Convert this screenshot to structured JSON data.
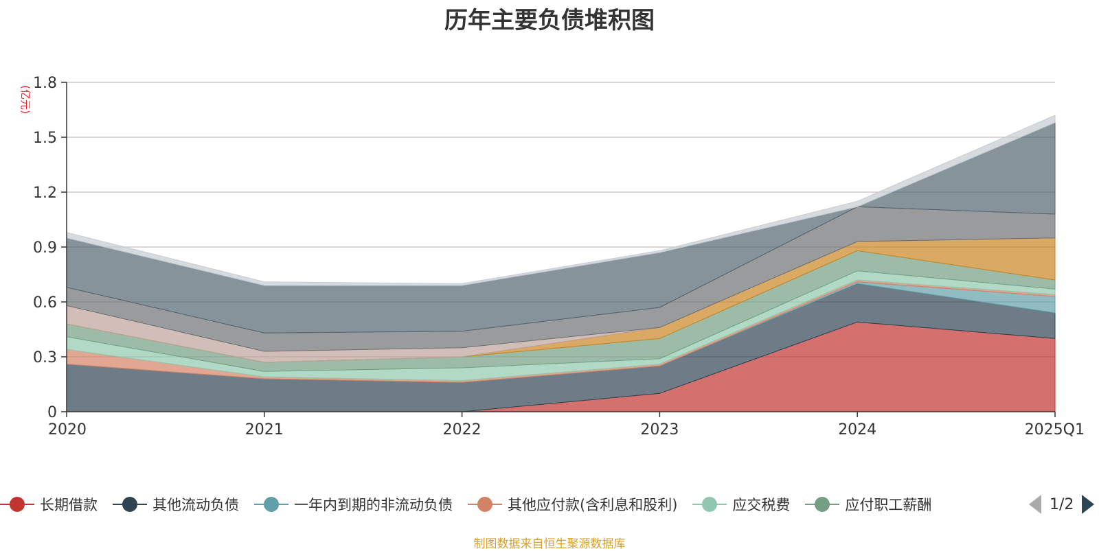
{
  "title": "历年主要负债堆积图",
  "unit_label": "(亿元)",
  "source_note": "制图数据来自恒生聚源数据库",
  "pager": {
    "text": "1/2"
  },
  "legend_items": [
    {
      "label": "长期借款",
      "color": "#c23531"
    },
    {
      "label": "其他流动负债",
      "color": "#2f4554"
    },
    {
      "label": "一年内到期的非流动负债",
      "color": "#61a0a8"
    },
    {
      "label": "其他应付款(含利息和股利)",
      "color": "#d48265"
    },
    {
      "label": "应交税费",
      "color": "#91c7ae"
    },
    {
      "label": "应付职工薪酬",
      "color": "#749f83"
    }
  ],
  "chart_data": {
    "type": "area",
    "stacked": true,
    "title": "历年主要负债堆积图",
    "ylabel": "(亿元)",
    "categories": [
      "2020",
      "2021",
      "2022",
      "2023",
      "2024",
      "2025Q1"
    ],
    "ylim": [
      0,
      1.8
    ],
    "yticks": [
      "0",
      "0.3",
      "0.6",
      "0.9",
      "1.2",
      "1.5",
      "1.8"
    ],
    "grid": true,
    "legend_position": "bottom",
    "series": [
      {
        "name": "长期借款",
        "color": "#c23531",
        "values": [
          0,
          0,
          0,
          0.1,
          0.49,
          0.4
        ]
      },
      {
        "name": "其他流动负债",
        "color": "#2f4554",
        "values": [
          0.26,
          0.18,
          0.16,
          0.15,
          0.21,
          0.14
        ]
      },
      {
        "name": "一年内到期的非流动负债",
        "color": "#61a0a8",
        "values": [
          0,
          0,
          0,
          0,
          0.01,
          0.09
        ]
      },
      {
        "name": "其他应付款(含利息和股利)",
        "color": "#d48265",
        "values": [
          0.08,
          0.01,
          0.01,
          0.01,
          0.01,
          0.01
        ]
      },
      {
        "name": "应交税费",
        "color": "#91c7ae",
        "values": [
          0.07,
          0.03,
          0.07,
          0.03,
          0.05,
          0.03
        ]
      },
      {
        "name": "应付职工薪酬",
        "color": "#749f83",
        "values": [
          0.07,
          0.05,
          0.06,
          0.11,
          0.11,
          0.05
        ]
      },
      {
        "name": "",
        "color": "#ca8622",
        "values": [
          0,
          0,
          0,
          0.06,
          0.05,
          0.23
        ]
      },
      {
        "name": "",
        "color": "#bda29a",
        "values": [
          0.1,
          0.06,
          0.05,
          0,
          0,
          0
        ]
      },
      {
        "name": "",
        "color": "#6e7074",
        "values": [
          0.1,
          0.1,
          0.09,
          0.11,
          0.19,
          0.13
        ]
      },
      {
        "name": "",
        "color": "#546570",
        "values": [
          0.27,
          0.26,
          0.25,
          0.3,
          0,
          0.5
        ]
      },
      {
        "name": "",
        "color": "#c4ccd3",
        "values": [
          0.03,
          0.02,
          0.01,
          0.01,
          0.03,
          0.04
        ]
      }
    ]
  }
}
